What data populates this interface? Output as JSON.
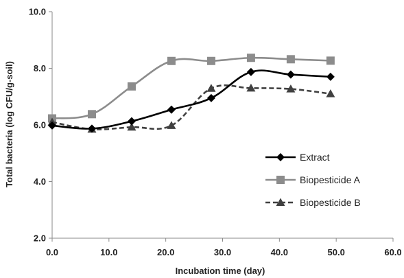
{
  "chart_data": {
    "type": "line",
    "xlabel": "Incubation time (day)",
    "ylabel": "Total bacteria (log CFU/g-soil)",
    "xlim": [
      0,
      60
    ],
    "ylim": [
      2,
      10
    ],
    "x_ticks": [
      "0.0",
      "10.0",
      "20.0",
      "30.0",
      "40.0",
      "50.0",
      "60.0"
    ],
    "y_ticks": [
      "2.0",
      "4.0",
      "6.0",
      "8.0",
      "10.0"
    ],
    "x_tick_values": [
      0,
      10,
      20,
      30,
      40,
      50,
      60
    ],
    "y_tick_values": [
      2,
      4,
      6,
      8,
      10
    ],
    "grid": false,
    "smooth": true,
    "legend_position": "right",
    "x": [
      0,
      7,
      14,
      21,
      28,
      35,
      42,
      49
    ],
    "series": [
      {
        "name": "Extract",
        "values": [
          5.98,
          5.87,
          6.13,
          6.54,
          6.95,
          7.87,
          7.78,
          7.7
        ],
        "color": "#000000",
        "marker": "diamond",
        "dash": "solid"
      },
      {
        "name": "Biopesticide A",
        "values": [
          6.23,
          6.38,
          7.36,
          8.26,
          8.26,
          8.37,
          8.32,
          8.27
        ],
        "color": "#8c8c8c",
        "marker": "square",
        "dash": "solid"
      },
      {
        "name": "Biopesticide B",
        "values": [
          6.1,
          5.85,
          5.92,
          5.98,
          7.29,
          7.3,
          7.27,
          7.1
        ],
        "color": "#404040",
        "marker": "triangle",
        "dash": "dashed"
      }
    ]
  }
}
